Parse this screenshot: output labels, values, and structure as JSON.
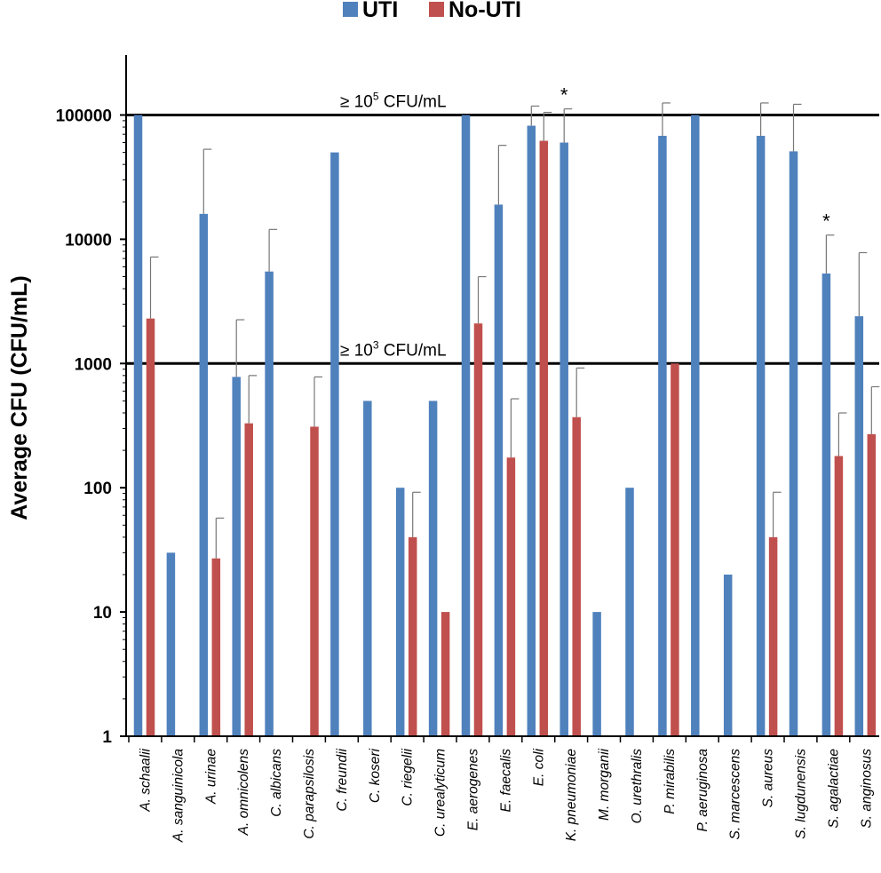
{
  "chart_data": {
    "type": "bar",
    "scale": "log",
    "ylabel": "Average CFU (CFU/mL)",
    "xlabel": "",
    "ylim": [
      1,
      200000
    ],
    "yticks": [
      1,
      10,
      100,
      1000,
      10000,
      100000
    ],
    "ytick_labels": [
      "1",
      "10",
      "100",
      "1000",
      "10000",
      "100000"
    ],
    "categories": [
      "A. schaalii",
      "A. sanguinicola",
      "A. urinae",
      "A. omnicolens",
      "C. albicans",
      "C. parapsilosis",
      "C. freundii",
      "C. koseri",
      "C. riegelii",
      "C. urealyticum",
      "E. aerogenes",
      "E. faecalis",
      "E. coli",
      "K. pneumoniae",
      "M. morganii",
      "O. urethralis",
      "P. mirabilis",
      "P. aeruginosa",
      "S. marcescens",
      "S. aureus",
      "S. lugdunensis",
      "S. agalactiae",
      "S. anginosus"
    ],
    "series": [
      {
        "name": "UTI",
        "color": "#4f81bd",
        "values": [
          100000,
          30,
          16000,
          780,
          5500,
          null,
          50000,
          500,
          100,
          500,
          100000,
          19000,
          82000,
          60000,
          10,
          100,
          68000,
          100000,
          20,
          68000,
          51000,
          5300,
          2400
        ],
        "error_upper": [
          null,
          null,
          53000,
          2250,
          12000,
          null,
          null,
          null,
          null,
          null,
          null,
          57000,
          118000,
          112000,
          null,
          null,
          125000,
          null,
          null,
          125000,
          122000,
          10800,
          7800
        ]
      },
      {
        "name": "No-UTI",
        "color": "#c0504d",
        "values": [
          2300,
          null,
          27,
          330,
          null,
          310,
          null,
          null,
          40,
          10,
          2100,
          175,
          62000,
          370,
          null,
          null,
          1000,
          null,
          null,
          40,
          null,
          180,
          270
        ],
        "error_upper": [
          7200,
          null,
          57,
          800,
          null,
          780,
          null,
          null,
          92,
          null,
          5000,
          520,
          105000,
          920,
          null,
          null,
          null,
          null,
          null,
          92,
          null,
          400,
          650
        ]
      }
    ],
    "significance": [
      {
        "category": "K. pneumoniae",
        "label": "*"
      },
      {
        "category": "S. agalactiae",
        "label": "*"
      }
    ],
    "thresholds": [
      {
        "value": 100000,
        "prefix": "≥ 10",
        "exp": "5",
        "suffix": " CFU/mL"
      },
      {
        "value": 1000,
        "prefix": "≥ 10",
        "exp": "3",
        "suffix": " CFU/mL"
      }
    ],
    "legend": {
      "position": "top-center",
      "entries": [
        "UTI",
        "No-UTI"
      ]
    }
  }
}
